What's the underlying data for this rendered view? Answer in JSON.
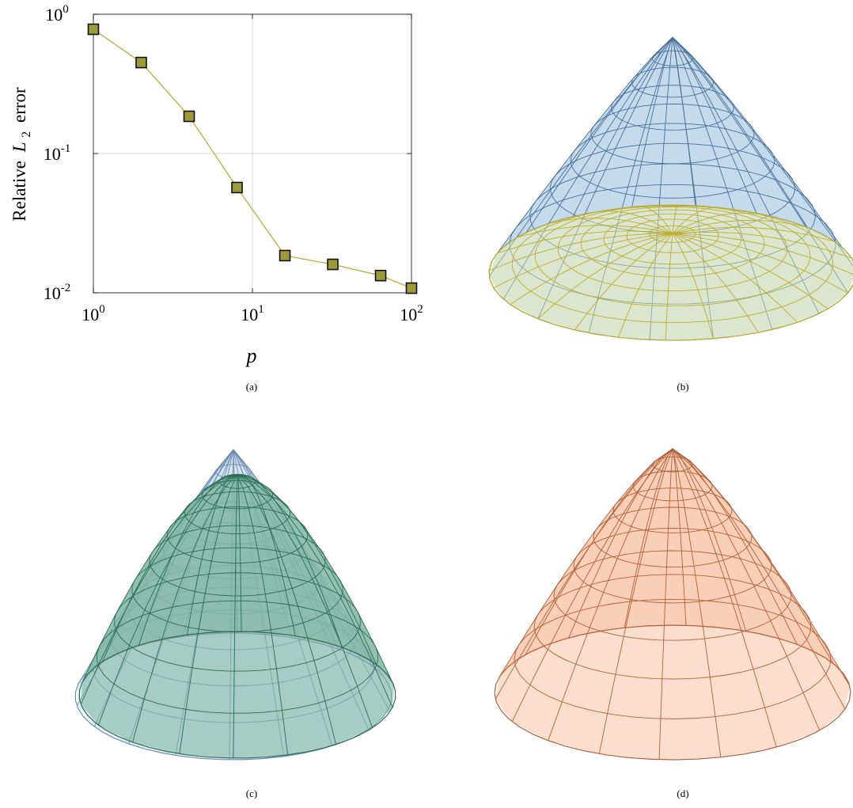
{
  "chart_data": [
    {
      "type": "scatter",
      "title": "",
      "xlabel": "p",
      "ylabel_prefix": "Relative",
      "ylabel_var": "L",
      "ylabel_sub": "2",
      "ylabel_suffix": "error",
      "x_scale": "log",
      "y_scale": "log",
      "xlim": [
        1,
        100
      ],
      "ylim": [
        0.01,
        1
      ],
      "grid": true,
      "x_ticks": [
        {
          "value": 1,
          "base": "10",
          "exp": "0"
        },
        {
          "value": 10,
          "base": "10",
          "exp": "1"
        },
        {
          "value": 100,
          "base": "10",
          "exp": "2"
        }
      ],
      "y_ticks": [
        {
          "value": 1,
          "base": "10",
          "exp": "0"
        },
        {
          "value": 0.1,
          "base": "10",
          "exp": "-1"
        },
        {
          "value": 0.01,
          "base": "10",
          "exp": "-2"
        }
      ],
      "series": [
        {
          "color": "#9c9a3a",
          "line_color": "#b5ae3e",
          "marker": "square",
          "points": [
            {
              "x": 1,
              "y": 0.78
            },
            {
              "x": 2,
              "y": 0.45
            },
            {
              "x": 4,
              "y": 0.185
            },
            {
              "x": 8,
              "y": 0.057
            },
            {
              "x": 16,
              "y": 0.0185
            },
            {
              "x": 32,
              "y": 0.016
            },
            {
              "x": 64,
              "y": 0.0133
            },
            {
              "x": 100,
              "y": 0.0108
            }
          ]
        }
      ]
    }
  ],
  "captions": {
    "a": "(a)",
    "b": "(b)",
    "c": "(c)",
    "d": "(d)"
  },
  "surfaces": {
    "b": {
      "cone_color": "#4a6f98",
      "cone_fill": "#b7d1e6",
      "cap_color": "#b9ae34",
      "cap_fill": "#e3e7a6"
    },
    "c": {
      "back_color": "#6c8db0",
      "back_fill": "#c4d6e8",
      "front_color": "#2c6b55",
      "front_fill": "#7fb5a1"
    },
    "d": {
      "color": "#b0603c",
      "fill": "#f8c2a4"
    }
  }
}
